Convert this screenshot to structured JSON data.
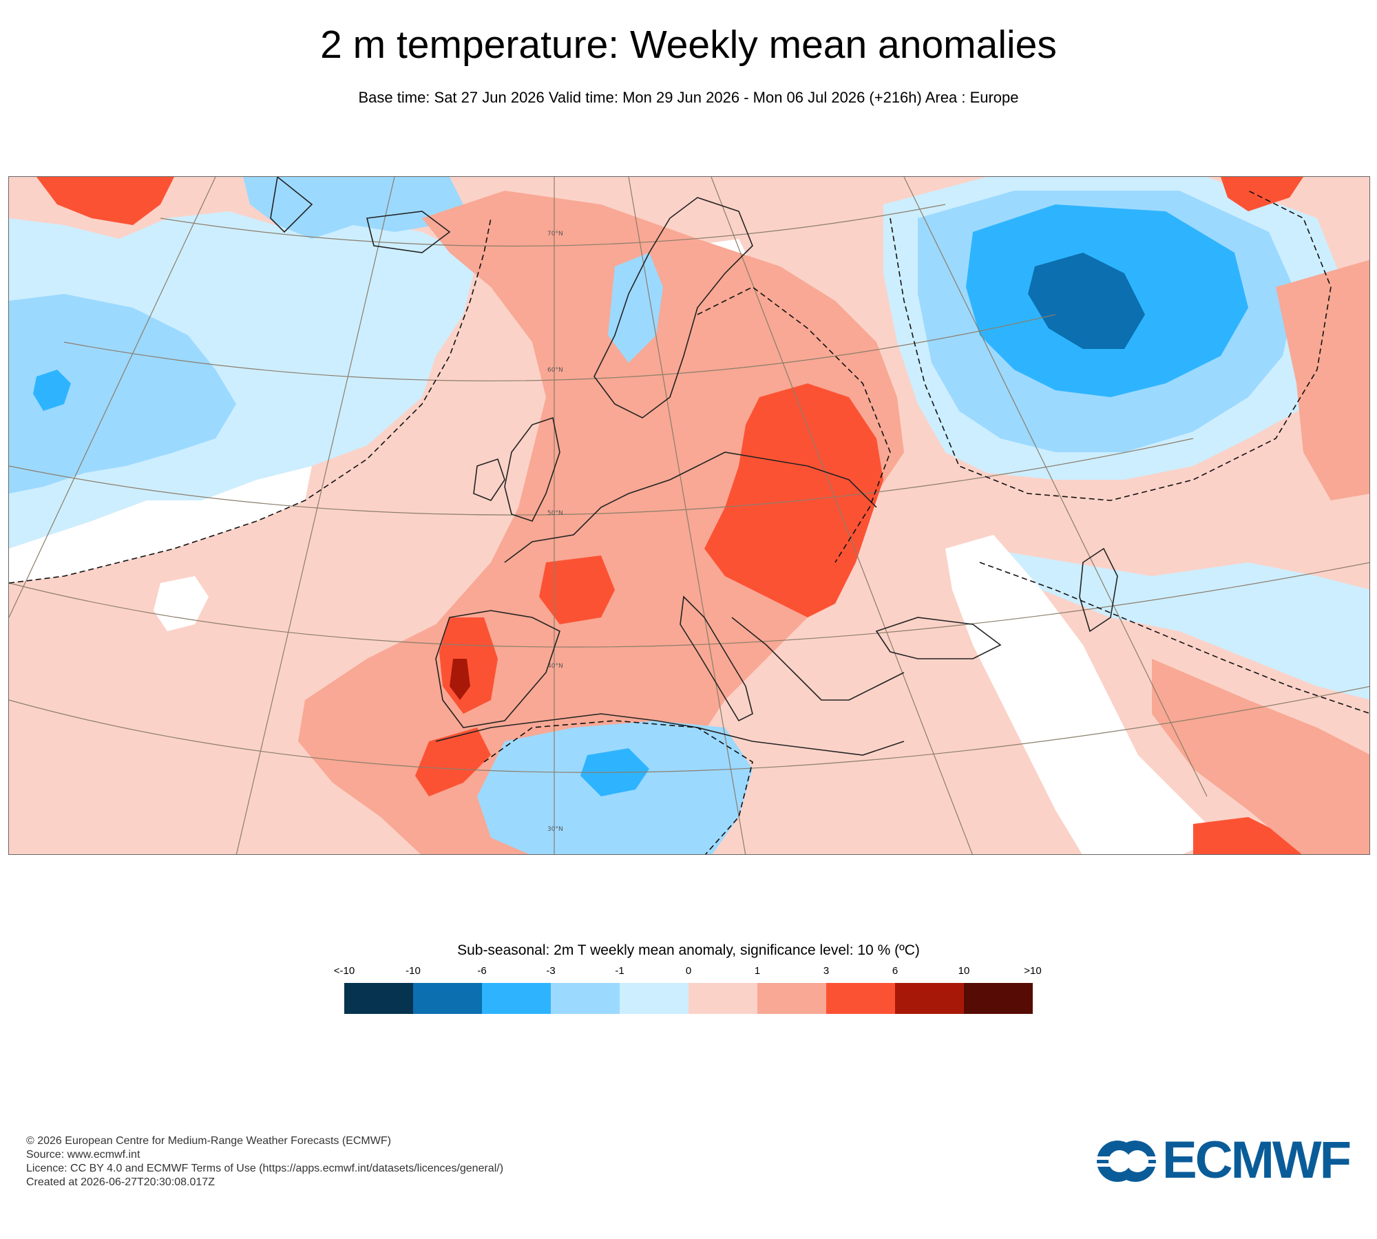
{
  "title": "2 m temperature: Weekly mean anomalies",
  "subtitle": "Base time: Sat 27 Jun 2026 Valid time: Mon 29 Jun 2026 - Mon 06 Jul 2026 (+216h) Area : Europe",
  "map": {
    "latitude_labels": [
      "70°N",
      "60°N",
      "50°N",
      "40°N",
      "30°N"
    ]
  },
  "legend": {
    "title": "Sub-seasonal: 2m T weekly mean anomaly, significance level: 10 % (ºC)",
    "ticks": [
      "<-10",
      "-10",
      "-6",
      "-3",
      "-1",
      "0",
      "1",
      "3",
      "6",
      "10",
      ">10"
    ],
    "colors": [
      "#053350",
      "#0b6fb0",
      "#2eb4ff",
      "#9cd9ff",
      "#cdeeff",
      "#fbd2c8",
      "#f8a894",
      "#fc5234",
      "#a81808",
      "#560c04"
    ]
  },
  "footer": {
    "copyright": "© 2026 European Centre for Medium-Range Weather Forecasts (ECMWF)",
    "source": "Source: www.ecmwf.int",
    "licence": "Licence: CC BY 4.0 and ECMWF Terms of Use (https://apps.ecmwf.int/datasets/licences/general/)",
    "created": "Created at 2026-06-27T20:30:08.017Z"
  },
  "logo_text": "ECMWF"
}
